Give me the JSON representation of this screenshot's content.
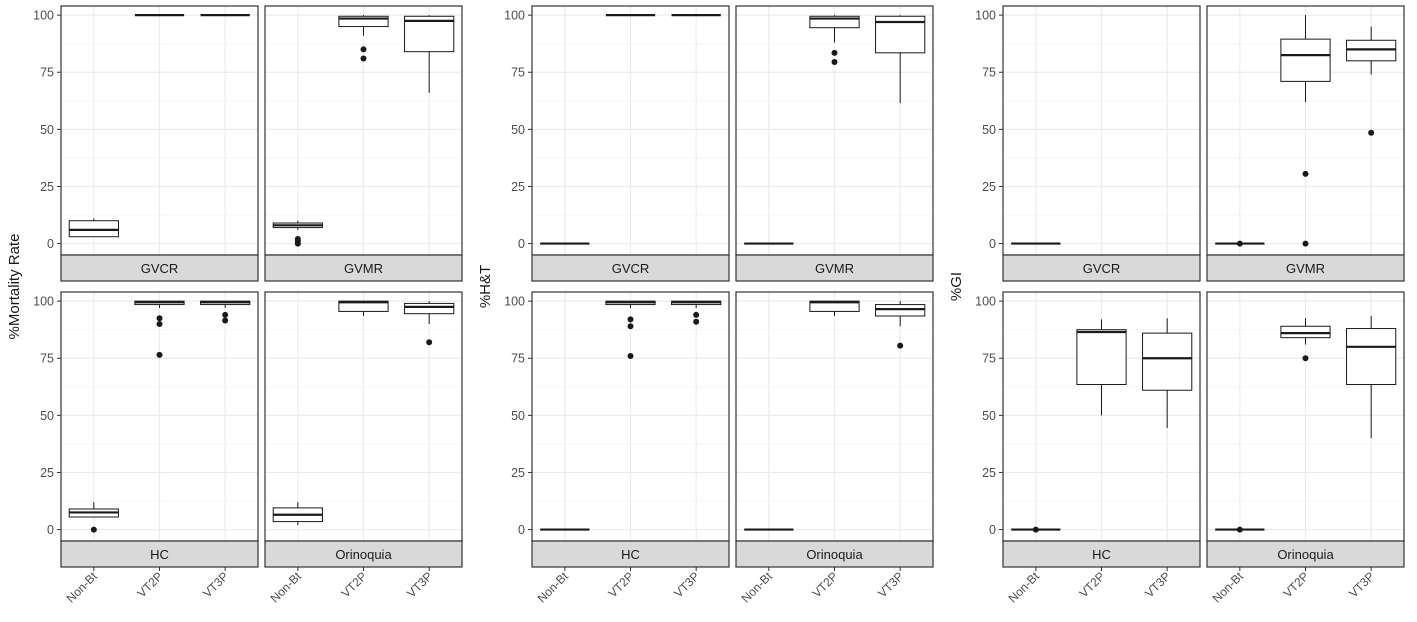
{
  "chart_data": [
    {
      "type": "boxplot",
      "ylabel": "%Mortality Rate",
      "categories": [
        "Non-Bt",
        "VT2P",
        "VT3P"
      ],
      "ylim": [
        -5,
        104
      ],
      "yticks": [
        0,
        25,
        50,
        75,
        100
      ],
      "grid": true,
      "facets": [
        {
          "strip": "GVCR",
          "boxes": [
            {
              "category": "Non-Bt",
              "q1": 3,
              "median": 6,
              "q3": 10,
              "whisker_low": 3,
              "whisker_high": 11,
              "outliers": []
            },
            {
              "category": "VT2P",
              "q1": 100,
              "median": 100,
              "q3": 100,
              "whisker_low": 100,
              "whisker_high": 100,
              "outliers": []
            },
            {
              "category": "VT3P",
              "q1": 100,
              "median": 100,
              "q3": 100,
              "whisker_low": 100,
              "whisker_high": 100,
              "outliers": []
            }
          ]
        },
        {
          "strip": "GVMR",
          "boxes": [
            {
              "category": "Non-Bt",
              "q1": 7,
              "median": 8,
              "q3": 9,
              "whisker_low": 6,
              "whisker_high": 10,
              "outliers": [
                0,
                1,
                2
              ]
            },
            {
              "category": "VT2P",
              "q1": 95,
              "median": 98.5,
              "q3": 99.5,
              "whisker_low": 91,
              "whisker_high": 100,
              "outliers": [
                81,
                85
              ]
            },
            {
              "category": "VT3P",
              "q1": 84,
              "median": 97.5,
              "q3": 99.5,
              "whisker_low": 66,
              "whisker_high": 100,
              "outliers": []
            }
          ]
        },
        {
          "strip": "HC",
          "boxes": [
            {
              "category": "Non-Bt",
              "q1": 5.5,
              "median": 7.5,
              "q3": 9,
              "whisker_low": 5.5,
              "whisker_high": 12,
              "outliers": [
                0
              ]
            },
            {
              "category": "VT2P",
              "q1": 98.5,
              "median": 99.5,
              "q3": 100,
              "whisker_low": 97,
              "whisker_high": 100,
              "outliers": [
                76.5,
                90,
                92.5
              ]
            },
            {
              "category": "VT3P",
              "q1": 98.5,
              "median": 99.5,
              "q3": 100,
              "whisker_low": 97,
              "whisker_high": 100,
              "outliers": [
                91.5,
                94
              ]
            }
          ]
        },
        {
          "strip": "Orinoquia",
          "boxes": [
            {
              "category": "Non-Bt",
              "q1": 3.5,
              "median": 6.5,
              "q3": 9.5,
              "whisker_low": 2,
              "whisker_high": 12,
              "outliers": []
            },
            {
              "category": "VT2P",
              "q1": 95.5,
              "median": 99.5,
              "q3": 100,
              "whisker_low": 93.5,
              "whisker_high": 100,
              "outliers": []
            },
            {
              "category": "VT3P",
              "q1": 94.5,
              "median": 97.5,
              "q3": 99,
              "whisker_low": 90,
              "whisker_high": 100,
              "outliers": [
                82
              ]
            }
          ]
        }
      ]
    },
    {
      "type": "boxplot",
      "ylabel": "%H&T",
      "categories": [
        "Non-Bt",
        "VT2P",
        "VT3P"
      ],
      "ylim": [
        -5,
        104
      ],
      "yticks": [
        0,
        25,
        50,
        75,
        100
      ],
      "grid": true,
      "facets": [
        {
          "strip": "GVCR",
          "boxes": [
            {
              "category": "Non-Bt",
              "q1": 0,
              "median": 0,
              "q3": 0,
              "whisker_low": 0,
              "whisker_high": 0,
              "outliers": []
            },
            {
              "category": "VT2P",
              "q1": 100,
              "median": 100,
              "q3": 100,
              "whisker_low": 100,
              "whisker_high": 100,
              "outliers": []
            },
            {
              "category": "VT3P",
              "q1": 100,
              "median": 100,
              "q3": 100,
              "whisker_low": 100,
              "whisker_high": 100,
              "outliers": []
            }
          ]
        },
        {
          "strip": "GVMR",
          "boxes": [
            {
              "category": "Non-Bt",
              "q1": 0,
              "median": 0,
              "q3": 0,
              "whisker_low": 0,
              "whisker_high": 0,
              "outliers": []
            },
            {
              "category": "VT2P",
              "q1": 94.5,
              "median": 98.5,
              "q3": 99.5,
              "whisker_low": 88,
              "whisker_high": 100,
              "outliers": [
                79.5,
                83.5
              ]
            },
            {
              "category": "VT3P",
              "q1": 83.5,
              "median": 97,
              "q3": 99.5,
              "whisker_low": 61.5,
              "whisker_high": 100,
              "outliers": []
            }
          ]
        },
        {
          "strip": "HC",
          "boxes": [
            {
              "category": "Non-Bt",
              "q1": 0,
              "median": 0,
              "q3": 0,
              "whisker_low": 0,
              "whisker_high": 0,
              "outliers": []
            },
            {
              "category": "VT2P",
              "q1": 98.5,
              "median": 99.5,
              "q3": 100,
              "whisker_low": 97,
              "whisker_high": 100,
              "outliers": [
                76,
                89,
                92
              ]
            },
            {
              "category": "VT3P",
              "q1": 98.5,
              "median": 99.5,
              "q3": 100,
              "whisker_low": 97,
              "whisker_high": 100,
              "outliers": [
                91,
                94
              ]
            }
          ]
        },
        {
          "strip": "Orinoquia",
          "boxes": [
            {
              "category": "Non-Bt",
              "q1": 0,
              "median": 0,
              "q3": 0,
              "whisker_low": 0,
              "whisker_high": 0,
              "outliers": []
            },
            {
              "category": "VT2P",
              "q1": 95.5,
              "median": 99.5,
              "q3": 100,
              "whisker_low": 93.5,
              "whisker_high": 100,
              "outliers": []
            },
            {
              "category": "VT3P",
              "q1": 93.5,
              "median": 96.5,
              "q3": 98.5,
              "whisker_low": 89,
              "whisker_high": 100,
              "outliers": [
                80.5
              ]
            }
          ]
        }
      ]
    },
    {
      "type": "boxplot",
      "ylabel": "%GI",
      "categories": [
        "Non-Bt",
        "VT2P",
        "VT3P"
      ],
      "ylim": [
        -5,
        104
      ],
      "yticks": [
        0,
        25,
        50,
        75,
        100
      ],
      "grid": true,
      "facets": [
        {
          "strip": "GVCR",
          "boxes": [
            {
              "category": "Non-Bt",
              "q1": 0,
              "median": 0,
              "q3": 0,
              "whisker_low": 0,
              "whisker_high": 0,
              "outliers": []
            }
          ]
        },
        {
          "strip": "GVMR",
          "boxes": [
            {
              "category": "Non-Bt",
              "q1": 0,
              "median": 0,
              "q3": 0,
              "whisker_low": 0,
              "whisker_high": 0,
              "outliers": [
                0
              ]
            },
            {
              "category": "VT2P",
              "q1": 71,
              "median": 82.5,
              "q3": 89.5,
              "whisker_low": 62,
              "whisker_high": 100,
              "outliers": [
                0,
                30.5
              ]
            },
            {
              "category": "VT3P",
              "q1": 80,
              "median": 85,
              "q3": 89,
              "whisker_low": 74,
              "whisker_high": 95,
              "outliers": [
                48.5
              ]
            }
          ]
        },
        {
          "strip": "HC",
          "boxes": [
            {
              "category": "Non-Bt",
              "q1": 0,
              "median": 0,
              "q3": 0,
              "whisker_low": 0,
              "whisker_high": 0,
              "outliers": [
                0
              ]
            },
            {
              "category": "VT2P",
              "q1": 63.5,
              "median": 86.5,
              "q3": 87.5,
              "whisker_low": 50,
              "whisker_high": 92,
              "outliers": []
            },
            {
              "category": "VT3P",
              "q1": 61,
              "median": 75,
              "q3": 86,
              "whisker_low": 44.5,
              "whisker_high": 92.5,
              "outliers": []
            }
          ]
        },
        {
          "strip": "Orinoquia",
          "boxes": [
            {
              "category": "Non-Bt",
              "q1": 0,
              "median": 0,
              "q3": 0,
              "whisker_low": 0,
              "whisker_high": 0,
              "outliers": [
                0
              ]
            },
            {
              "category": "VT2P",
              "q1": 84,
              "median": 86,
              "q3": 89,
              "whisker_low": 81,
              "whisker_high": 92.5,
              "outliers": [
                75
              ]
            },
            {
              "category": "VT3P",
              "q1": 63.5,
              "median": 80,
              "q3": 88,
              "whisker_low": 40,
              "whisker_high": 93.5,
              "outliers": []
            }
          ]
        }
      ]
    }
  ],
  "colors": {
    "strip_fill": "#d9d9d9",
    "panel_border": "#333333",
    "grid_major": "#ebebeb",
    "grid_minor": "#f5f5f5",
    "box_line": "#1a1a1a",
    "outlier": "#1a1a1a",
    "tick_text": "#4d4d4d"
  }
}
